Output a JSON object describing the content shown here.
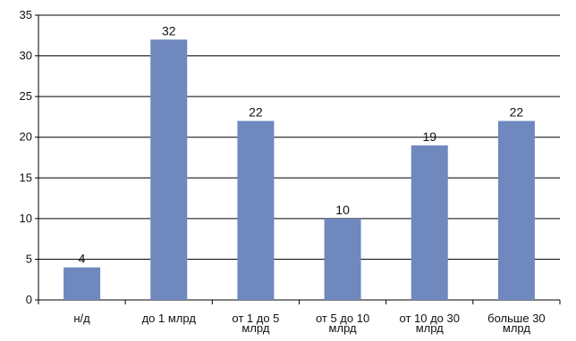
{
  "chart_data": {
    "type": "bar",
    "title": "",
    "xlabel": "",
    "ylabel": "",
    "categories": [
      [
        "н/д"
      ],
      [
        "до 1 млрд"
      ],
      [
        "от 1 до 5",
        "млрд"
      ],
      [
        "от 5 до 10",
        "млрд"
      ],
      [
        "от 10 до 30",
        "млрд"
      ],
      [
        "больше 30",
        "млрд"
      ]
    ],
    "values": [
      4,
      32,
      22,
      10,
      19,
      22
    ],
    "data_labels": [
      "4",
      "32",
      "22",
      "10",
      "19",
      "22"
    ],
    "ylim": [
      0,
      35
    ],
    "yticks": [
      0,
      5,
      10,
      15,
      20,
      25,
      30,
      35
    ],
    "grid": true,
    "legend": "none",
    "colors": {
      "bar": "#6f88be",
      "grid": "#000000",
      "axis": "#000000"
    }
  }
}
